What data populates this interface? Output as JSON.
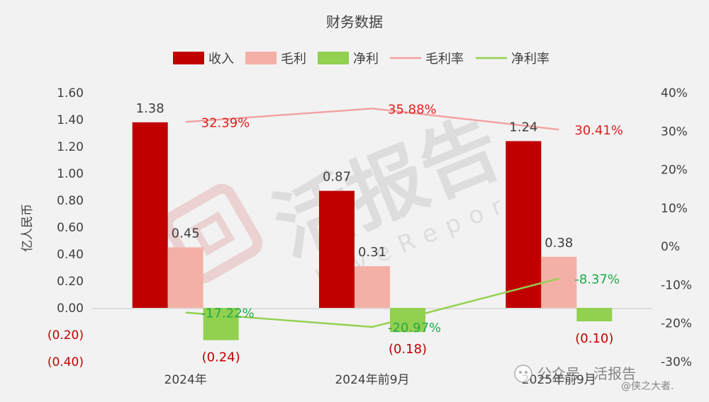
{
  "chart_data": {
    "type": "bar",
    "title": "财务数据",
    "ylabel": "亿人民币",
    "categories": [
      "2024年",
      "2024年前9月",
      "2025年前9月"
    ],
    "ylim": [
      -0.4,
      1.6
    ],
    "y_ticks": [
      "1.60",
      "1.40",
      "1.20",
      "1.00",
      "0.80",
      "0.60",
      "0.40",
      "0.20",
      "0.00",
      "(0.20)",
      "(0.40)"
    ],
    "y2lim": [
      -30,
      40
    ],
    "y2_ticks": [
      "40%",
      "30%",
      "20%",
      "10%",
      "0%",
      "-10%",
      "-20%",
      "-30%"
    ],
    "series": [
      {
        "name": "收入",
        "kind": "bar",
        "color": "#c00000",
        "values": [
          1.38,
          0.87,
          1.24
        ],
        "labels": [
          "1.38",
          "0.87",
          "1.24"
        ],
        "label_color": "#404040"
      },
      {
        "name": "毛利",
        "kind": "bar",
        "color": "#f4b0a6",
        "values": [
          0.45,
          0.31,
          0.38
        ],
        "labels": [
          "0.45",
          "0.31",
          "0.38"
        ],
        "label_color": "#404040"
      },
      {
        "name": "净利",
        "kind": "bar",
        "color": "#92d050",
        "values": [
          -0.24,
          -0.18,
          -0.1
        ],
        "labels": [
          "(0.24)",
          "(0.18)",
          "(0.10)"
        ],
        "label_color": "#c00000"
      },
      {
        "name": "毛利率",
        "kind": "line",
        "axis": "right",
        "color": "#f4a0a0",
        "values": [
          32.39,
          35.88,
          30.41
        ],
        "labels": [
          "32.39%",
          "35.88%",
          "30.41%"
        ],
        "label_color": "#e02020"
      },
      {
        "name": "净利率",
        "kind": "line",
        "axis": "right",
        "color": "#92d050",
        "values": [
          -17.22,
          -20.97,
          -8.37
        ],
        "labels": [
          "-17.22%",
          "-20.97%",
          "-8.37%"
        ],
        "label_color": "#1faa4a"
      }
    ],
    "legend_position": "top",
    "grid": false
  },
  "watermark": {
    "text": "活报告",
    "subtext": "LiveReport"
  },
  "footer": {
    "account_label": "公众号 · 活报告",
    "byline": "@侠之大者."
  },
  "colors": {
    "background": "#f2f2f2",
    "axis_text": "#404040",
    "negative_tick": "#c00000"
  }
}
